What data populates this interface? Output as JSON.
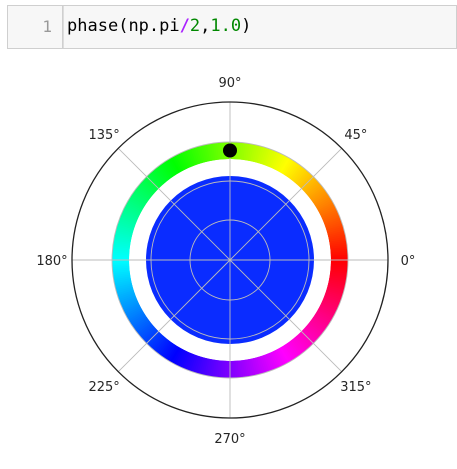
{
  "cell": {
    "prompt_number": "1",
    "code_tokens": {
      "fn": "phase",
      "open": "(",
      "arg1": "np.pi",
      "op": "/",
      "arg2": "2",
      "comma": ",",
      "arg3": "1.0",
      "close": ")"
    }
  },
  "plot": {
    "angle_labels": [
      "0°",
      "45°",
      "90°",
      "135°",
      "180°",
      "225°",
      "270°",
      "315°"
    ],
    "colors": {
      "disk": "#0a2cff",
      "marker": "#000000",
      "grid": "#bbbbbb",
      "spine": "#222222"
    }
  },
  "chart_data": {
    "type": "polar",
    "title": "",
    "theta_tick_labels": [
      "0°",
      "45°",
      "90°",
      "135°",
      "180°",
      "225°",
      "270°",
      "315°"
    ],
    "phase_angle_deg": 90,
    "magnitude": 1.0,
    "color_wheel": "hue mapped to angle (0° red, 60° yellow, 120° green, 180° cyan, 240° blue, 300° magenta)",
    "disk_color": "#0a2cff"
  }
}
